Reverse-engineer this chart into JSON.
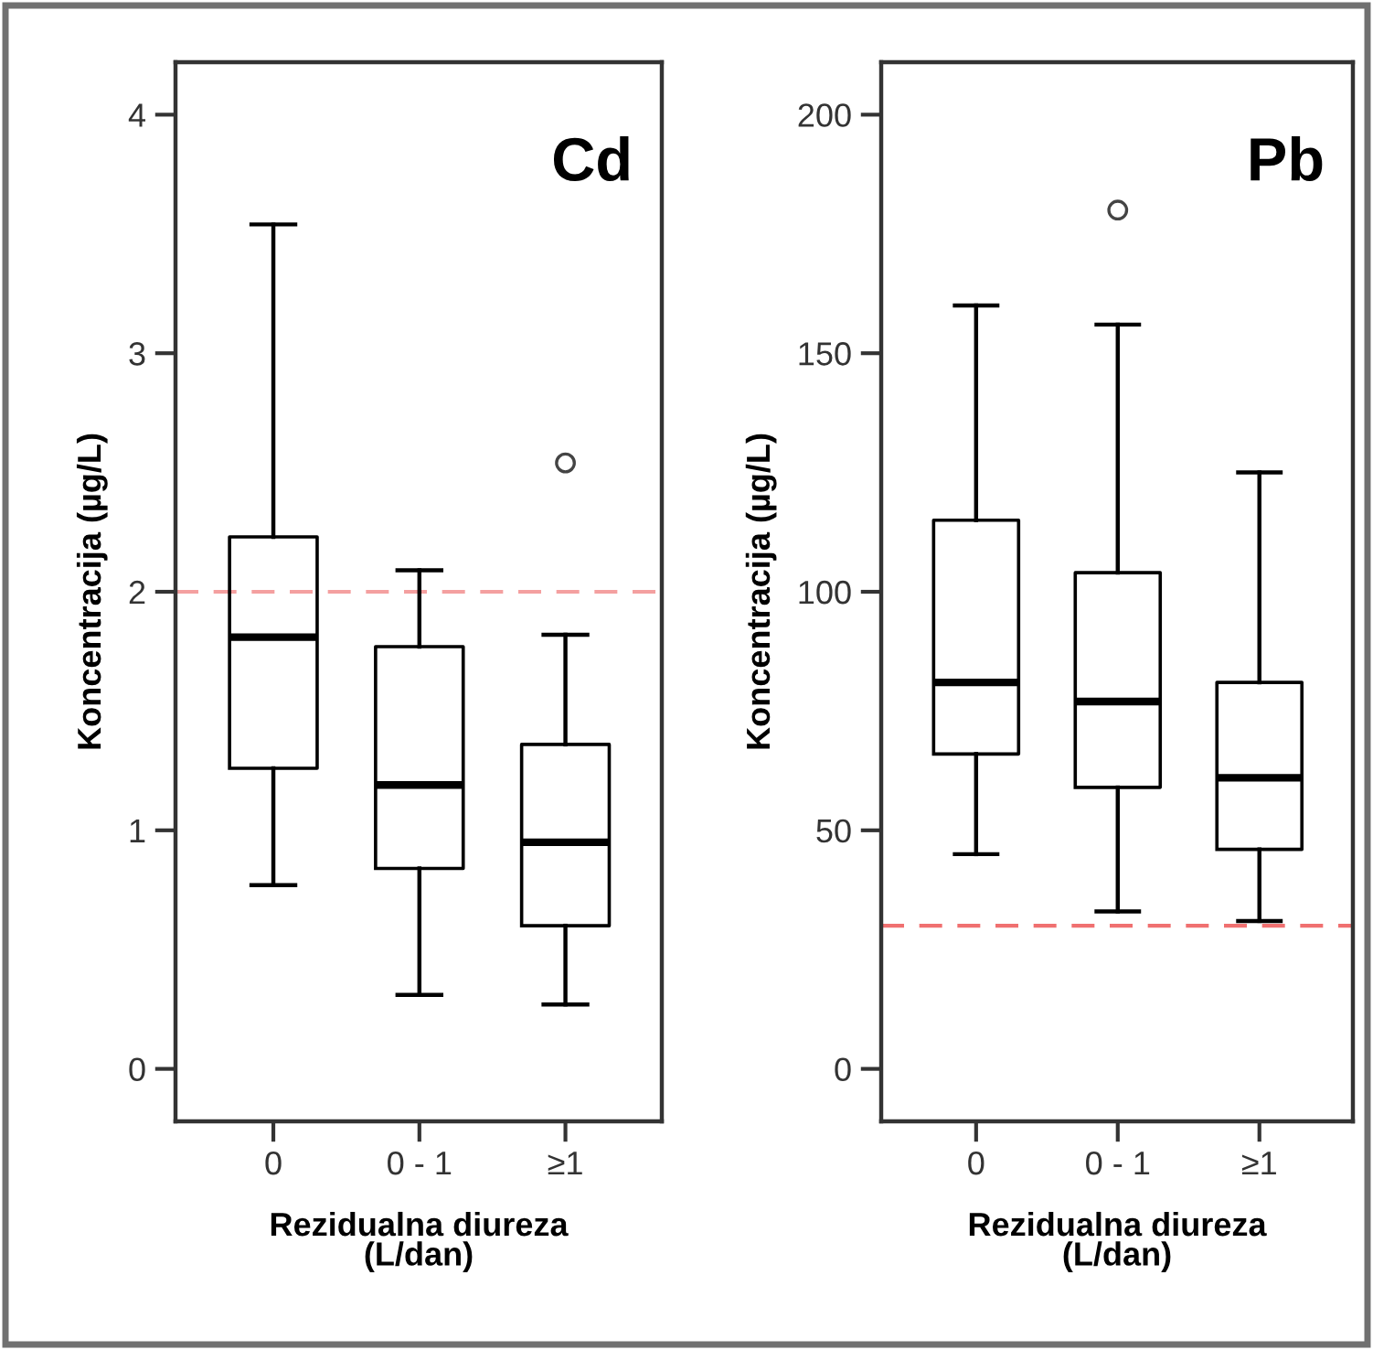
{
  "chart_data": [
    {
      "type": "box",
      "ylabel": "Koncentracija (µg/L)",
      "xlabel": "Rezidualna diureza\n(L/dan)",
      "annotations": [
        "Cd"
      ],
      "categories": [
        "0",
        "0 - 1",
        "≥1"
      ],
      "boxes": [
        {
          "low": 0.77,
          "q1": 1.26,
          "median": 1.81,
          "q3": 2.23,
          "high": 3.54
        },
        {
          "low": 0.31,
          "q1": 0.84,
          "median": 1.19,
          "q3": 1.77,
          "high": 2.09
        },
        {
          "low": 0.27,
          "q1": 0.6,
          "median": 0.95,
          "q3": 1.36,
          "high": 1.82,
          "outliers": [
            2.54
          ]
        }
      ],
      "ylim": [
        -0.22,
        4.22
      ],
      "yticks": [
        0,
        1,
        2,
        3,
        4
      ],
      "ref_lines": [
        {
          "axis": "y",
          "value": 2,
          "color": "#f4a0a0",
          "line_style": "dashed"
        }
      ]
    },
    {
      "type": "box",
      "ylabel": "Koncentracija (µg/L)",
      "xlabel": "Rezidualna diureza\n(L/dan)",
      "annotations": [
        "Pb"
      ],
      "categories": [
        "0",
        "0 - 1",
        "≥1"
      ],
      "boxes": [
        {
          "low": 45,
          "q1": 66,
          "median": 81,
          "q3": 115,
          "high": 160
        },
        {
          "low": 33,
          "q1": 59,
          "median": 77,
          "q3": 104,
          "high": 156,
          "outliers": [
            180
          ]
        },
        {
          "low": 31,
          "q1": 46,
          "median": 61,
          "q3": 81,
          "high": 125
        }
      ],
      "ylim": [
        -11,
        211
      ],
      "yticks": [
        0,
        50,
        100,
        150,
        200
      ],
      "ref_lines": [
        {
          "axis": "y",
          "value": 30,
          "color": "#f07070",
          "line_style": "dashed"
        }
      ]
    }
  ]
}
